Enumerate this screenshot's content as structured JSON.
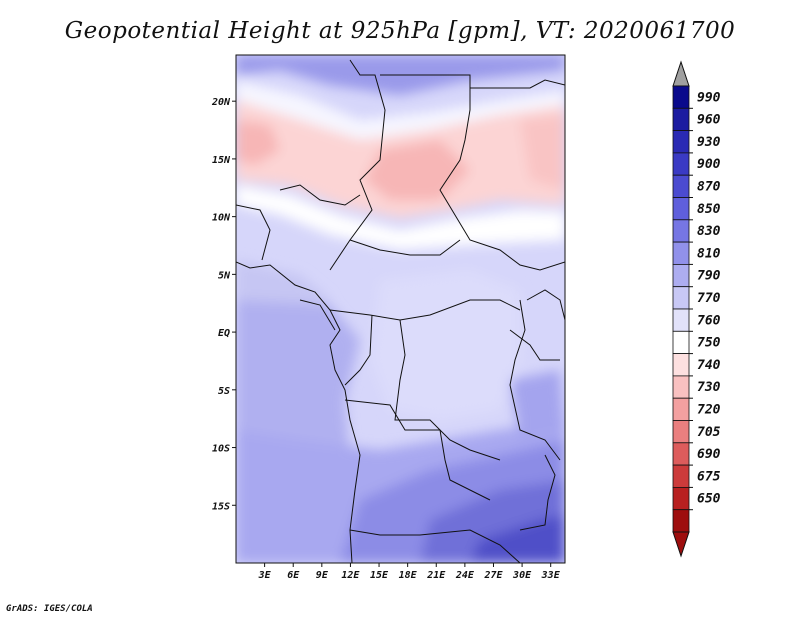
{
  "title": "Geopotential Height at 925hPa [gpm], VT: 2020061700",
  "footer": "GrADS: IGES/COLA",
  "map": {
    "lat_range": [
      -20,
      24
    ],
    "lon_range": [
      0,
      34.5
    ],
    "lat_ticks": [
      {
        "value": 20,
        "label": "20N"
      },
      {
        "value": 15,
        "label": "15N"
      },
      {
        "value": 10,
        "label": "10N"
      },
      {
        "value": 5,
        "label": "5N"
      },
      {
        "value": 0,
        "label": "EQ"
      },
      {
        "value": -5,
        "label": "5S"
      },
      {
        "value": -10,
        "label": "10S"
      },
      {
        "value": -15,
        "label": "15S"
      }
    ],
    "lon_ticks": [
      {
        "value": 3,
        "label": "3E"
      },
      {
        "value": 6,
        "label": "6E"
      },
      {
        "value": 9,
        "label": "9E"
      },
      {
        "value": 12,
        "label": "12E"
      },
      {
        "value": 15,
        "label": "15E"
      },
      {
        "value": 18,
        "label": "18E"
      },
      {
        "value": 21,
        "label": "21E"
      },
      {
        "value": 24,
        "label": "24E"
      },
      {
        "value": 27,
        "label": "27E"
      },
      {
        "value": 30,
        "label": "30E"
      },
      {
        "value": 33,
        "label": "33E"
      }
    ]
  },
  "colorbar": {
    "levels": [
      "990",
      "960",
      "930",
      "900",
      "870",
      "850",
      "830",
      "810",
      "790",
      "770",
      "760",
      "750",
      "740",
      "730",
      "720",
      "705",
      "690",
      "675",
      "650"
    ],
    "colors": [
      "#0a0a8c",
      "#1c1ca0",
      "#2a2ab4",
      "#3a3ac4",
      "#4b4bd0",
      "#5f5fdc",
      "#7676e4",
      "#9191ea",
      "#adadf0",
      "#c8c8f5",
      "#e2e2fa",
      "#ffffff",
      "#fde0e0",
      "#f9c1c1",
      "#f3a0a0",
      "#ea7f7f",
      "#dd5c5c",
      "#cc3b3b",
      "#b82020",
      "#9e0e0e"
    ],
    "arrow_top_color": "#a0a0a0",
    "arrow_bottom_color": "#9e0e0e"
  }
}
